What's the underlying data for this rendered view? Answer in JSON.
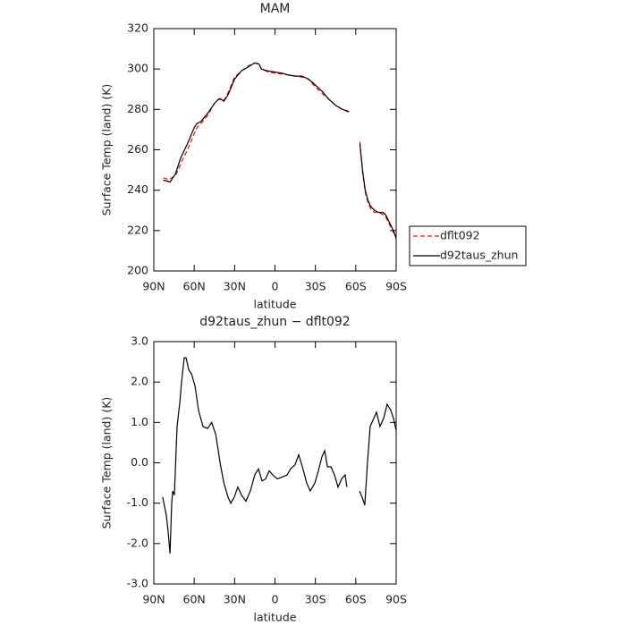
{
  "chart_data": [
    {
      "type": "line",
      "title": "MAM",
      "xlabel": "latitude",
      "ylabel": "Surface Temp (land) (K)",
      "x": [
        83,
        80,
        78,
        76,
        74,
        70,
        65,
        60,
        58,
        55,
        50,
        45,
        42,
        40,
        38,
        35,
        30,
        25,
        20,
        15,
        12,
        10,
        5,
        0,
        -5,
        -10,
        -15,
        -20,
        -25,
        -30,
        -35,
        -40,
        -45,
        -50,
        -55,
        -59,
        -63,
        -65,
        -67,
        -69,
        -71,
        -74,
        -77,
        -80,
        -82,
        -85,
        -88,
        -90
      ],
      "series": [
        {
          "name": "dflt092",
          "color": "#ff0000",
          "style": "dashed",
          "values": [
            246,
            245.5,
            245.5,
            246.5,
            247,
            253,
            260,
            268,
            271,
            273,
            277,
            283,
            285,
            285.5,
            284.5,
            288,
            296,
            299,
            301.5,
            303,
            302.5,
            300,
            298.5,
            298,
            297.5,
            297,
            296.5,
            296,
            295,
            291,
            288,
            285,
            282,
            280,
            278.5,
            null,
            264,
            249,
            239,
            234,
            231,
            229,
            229,
            228,
            227,
            223,
            219,
            217
          ]
        },
        {
          "name": "d92taus_zhun",
          "color": "#000000",
          "style": "solid",
          "values": [
            245,
            244.5,
            244,
            246,
            248,
            256,
            263,
            271,
            273,
            274,
            278,
            283,
            285,
            285,
            284,
            287,
            295,
            299,
            301,
            303,
            302.5,
            300,
            299,
            298.5,
            298,
            297,
            296.5,
            296.5,
            295,
            292,
            289,
            285,
            282,
            280,
            279,
            null,
            263,
            250,
            240,
            235,
            232,
            230,
            229,
            229,
            228,
            224,
            220,
            216
          ]
        }
      ],
      "xlim": [
        90,
        -90
      ],
      "xticks": [
        {
          "value": 90,
          "label": "90N"
        },
        {
          "value": 60,
          "label": "60N"
        },
        {
          "value": 30,
          "label": "30N"
        },
        0,
        {
          "value": -30,
          "label": "30S"
        },
        {
          "value": -60,
          "label": "60S"
        },
        {
          "value": -90,
          "label": "90S"
        }
      ],
      "ylim": [
        200,
        320
      ],
      "yticks": [
        200,
        220,
        240,
        260,
        280,
        300,
        320
      ]
    },
    {
      "type": "line",
      "title": "d92taus_zhun − dflt092",
      "xlabel": "latitude",
      "ylabel": "Surface Temp (land) (K)",
      "x": [
        83.4,
        80.7,
        79.4,
        78,
        76.7,
        76,
        74.7,
        72.7,
        70.7,
        69.4,
        67.4,
        66,
        64,
        62,
        59.4,
        56.8,
        53.5,
        50,
        47,
        44,
        40.8,
        38,
        34.9,
        32.9,
        30.2,
        27.6,
        24.9,
        21.6,
        18.3,
        15,
        12.3,
        9.6,
        7,
        4.3,
        1.7,
        -1.7,
        -5.6,
        -9,
        -11.6,
        -14.9,
        -17.6,
        -20.3,
        -23.6,
        -26.2,
        -29.6,
        -32.2,
        -34.9,
        -36.9,
        -38.9,
        -41.5,
        -44.2,
        -46.8,
        -49.5,
        -52.1,
        -53.4,
        -58,
        -62.8,
        -64.7,
        -66.7,
        -68.7,
        -70.7,
        -73.4,
        -75.4,
        -78,
        -80.7,
        -83.3,
        -86,
        -88,
        -90
      ],
      "values": [
        -0.85,
        -1.3,
        -1.7,
        -2.25,
        -1.0,
        -0.7,
        -0.8,
        0.9,
        1.5,
        2.0,
        2.6,
        2.6,
        2.3,
        2.2,
        1.9,
        1.3,
        0.9,
        0.85,
        1.0,
        0.7,
        0,
        -0.5,
        -0.85,
        -1.0,
        -0.85,
        -0.6,
        -0.8,
        -0.95,
        -0.7,
        -0.3,
        -0.15,
        -0.45,
        -0.4,
        -0.2,
        -0.3,
        -0.4,
        -0.35,
        -0.3,
        -0.15,
        -0.05,
        0.2,
        -0.1,
        -0.5,
        -0.7,
        -0.5,
        -0.2,
        0.15,
        0.3,
        -0.1,
        -0.1,
        -0.3,
        -0.6,
        -0.4,
        -0.3,
        -0.6,
        null,
        -0.7,
        -0.85,
        -1.05,
        0.0,
        0.9,
        1.1,
        1.25,
        0.9,
        1.1,
        1.45,
        1.3,
        1.1,
        0.8
      ],
      "color": "#000000",
      "xlim": [
        90,
        -90
      ],
      "xticks": [
        {
          "value": 90,
          "label": "90N"
        },
        {
          "value": 60,
          "label": "60N"
        },
        {
          "value": 30,
          "label": "30N"
        },
        0,
        {
          "value": -30,
          "label": "30S"
        },
        {
          "value": -60,
          "label": "60S"
        },
        {
          "value": -90,
          "label": "90S"
        }
      ],
      "ylim": [
        -3,
        3
      ],
      "yticks": [
        {
          "value": -3,
          "label": "-3.0"
        },
        {
          "value": -2,
          "label": "-2.0"
        },
        {
          "value": -1,
          "label": "-1.0"
        },
        {
          "value": 0,
          "label": "0.0"
        },
        {
          "value": 1,
          "label": "1.0"
        },
        {
          "value": 2,
          "label": "2.0"
        },
        {
          "value": 3,
          "label": "3.0"
        }
      ]
    }
  ]
}
